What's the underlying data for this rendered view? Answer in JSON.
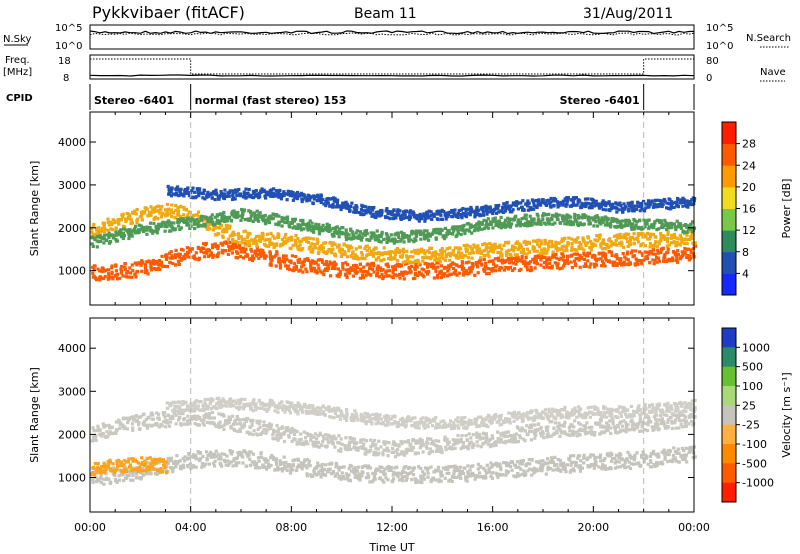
{
  "header": {
    "station": "Pykkvibaer (fitACF)",
    "beam": "Beam 11",
    "date": "31/Aug/2011"
  },
  "summary": {
    "nsky_label": "N.Sky",
    "nsearch_label": "N.Search",
    "freq_label": "Freq.",
    "freq_unit": "[MHz]",
    "nave_label": "Nave",
    "cpid_label": "CPID",
    "nsky_ticks": [
      "10^5",
      "10^0"
    ],
    "nsearch_ticks": [
      "10^5",
      "10^0"
    ],
    "freq_ticks": [
      "18",
      "8"
    ],
    "nave_ticks": [
      "80",
      "0"
    ],
    "cpid_segments": [
      {
        "label": "Stereo -6401",
        "start_hour": 0,
        "end_hour": 4
      },
      {
        "label": "normal (fast stereo) 153",
        "start_hour": 4,
        "end_hour": 22
      },
      {
        "label": "Stereo -6401",
        "start_hour": 22,
        "end_hour": 24
      }
    ]
  },
  "chart_data": [
    {
      "type": "heatmap",
      "name": "power",
      "ylabel": "Slant Range [km]",
      "yticks": [
        1000,
        2000,
        3000,
        4000
      ],
      "ylim": [
        200,
        4700
      ],
      "xlim": [
        0,
        24
      ],
      "colorbar": {
        "label": "Power [dB]",
        "ticks": [
          "4",
          "8",
          "12",
          "16",
          "20",
          "24",
          "28"
        ],
        "colors": [
          "#1428ff",
          "#2050b4",
          "#2e8b5a",
          "#78c84a",
          "#f2dc1e",
          "#ff9a00",
          "#ff5a00",
          "#ff1e00"
        ]
      }
    },
    {
      "type": "heatmap",
      "name": "velocity",
      "ylabel": "Slant Range [km]",
      "xlabel": "Time UT",
      "yticks": [
        1000,
        2000,
        3000,
        4000
      ],
      "ylim": [
        200,
        4700
      ],
      "xlim": [
        0,
        24
      ],
      "xticks": [
        "00:00",
        "04:00",
        "08:00",
        "12:00",
        "16:00",
        "20:00",
        "00:00"
      ],
      "colorbar": {
        "label": "Velocity [m s⁻¹]",
        "ticks": [
          "1000",
          "500",
          "100",
          "25",
          "-25",
          "-100",
          "-500",
          "-1000"
        ],
        "colors": [
          "#1e3cc8",
          "#2a8a6a",
          "#66c030",
          "#a8d878",
          "#c4c4bc",
          "#ffb040",
          "#ff8a00",
          "#ff5a00",
          "#ff1e00"
        ]
      }
    }
  ],
  "bands": {
    "power": [
      {
        "points": [
          [
            0,
            1000
          ],
          [
            0.7,
            1000
          ],
          [
            1.5,
            1050
          ],
          [
            2.3,
            1150
          ],
          [
            3,
            1300
          ],
          [
            4,
            1450
          ],
          [
            5,
            1550
          ],
          [
            6,
            1500
          ],
          [
            7,
            1350
          ],
          [
            8,
            1200
          ],
          [
            9,
            1120
          ],
          [
            10,
            1050
          ],
          [
            12,
            1020
          ],
          [
            14,
            1050
          ],
          [
            16,
            1150
          ],
          [
            18,
            1250
          ],
          [
            20,
            1300
          ],
          [
            22,
            1350
          ],
          [
            24,
            1450
          ]
        ],
        "width": 360,
        "color": "#ff5a00"
      },
      {
        "points": [
          [
            0,
            1950
          ],
          [
            1,
            2150
          ],
          [
            2,
            2350
          ],
          [
            3,
            2450
          ],
          [
            4,
            2300
          ],
          [
            5,
            2000
          ],
          [
            6,
            1800
          ],
          [
            7,
            1750
          ],
          [
            8,
            1700
          ],
          [
            9,
            1600
          ],
          [
            10,
            1500
          ],
          [
            11,
            1450
          ],
          [
            12,
            1400
          ],
          [
            13,
            1380
          ],
          [
            14,
            1420
          ],
          [
            15,
            1480
          ],
          [
            16,
            1520
          ],
          [
            18,
            1600
          ],
          [
            20,
            1700
          ],
          [
            22,
            1750
          ],
          [
            24,
            1800
          ]
        ],
        "width": 330,
        "color": "#f2a810"
      },
      {
        "points": [
          [
            0,
            1700
          ],
          [
            2,
            2000
          ],
          [
            4,
            2150
          ],
          [
            6,
            2350
          ],
          [
            8,
            2150
          ],
          [
            10,
            1900
          ],
          [
            12,
            1800
          ],
          [
            14,
            1900
          ],
          [
            16,
            2150
          ],
          [
            18,
            2250
          ],
          [
            20,
            2200
          ],
          [
            22,
            2100
          ],
          [
            24,
            2050
          ]
        ],
        "width": 260,
        "color": "#4f9a55"
      },
      {
        "points": [
          [
            3,
            2900
          ],
          [
            5,
            2800
          ],
          [
            7,
            2850
          ],
          [
            9,
            2700
          ],
          [
            11,
            2400
          ],
          [
            13,
            2300
          ],
          [
            15,
            2400
          ],
          [
            17,
            2550
          ],
          [
            19,
            2650
          ],
          [
            21,
            2500
          ],
          [
            24,
            2650
          ]
        ],
        "width": 230,
        "color": "#2050b4"
      }
    ],
    "velocity": [
      {
        "points": [
          [
            0,
            1050
          ],
          [
            1,
            1100
          ],
          [
            2,
            1200
          ],
          [
            3,
            1350
          ],
          [
            4,
            1450
          ],
          [
            6,
            1500
          ],
          [
            8,
            1300
          ],
          [
            10,
            1150
          ],
          [
            12,
            1100
          ],
          [
            14,
            1100
          ],
          [
            16,
            1200
          ],
          [
            18,
            1300
          ],
          [
            20,
            1400
          ],
          [
            22,
            1450
          ],
          [
            24,
            1600
          ]
        ],
        "width": 380,
        "color": "#c4c4bc"
      },
      {
        "points": [
          [
            0,
            2050
          ],
          [
            2,
            2350
          ],
          [
            4,
            2450
          ],
          [
            6,
            2250
          ],
          [
            8,
            2000
          ],
          [
            10,
            1800
          ],
          [
            12,
            1700
          ],
          [
            14,
            1800
          ],
          [
            16,
            1950
          ],
          [
            18,
            2150
          ],
          [
            20,
            2200
          ],
          [
            22,
            2300
          ],
          [
            24,
            2350
          ]
        ],
        "width": 360,
        "color": "#c9c9c1"
      },
      {
        "points": [
          [
            3,
            2650
          ],
          [
            5,
            2750
          ],
          [
            7,
            2700
          ],
          [
            9,
            2600
          ],
          [
            11,
            2400
          ],
          [
            13,
            2300
          ],
          [
            15,
            2300
          ],
          [
            17,
            2450
          ],
          [
            19,
            2550
          ],
          [
            21,
            2550
          ],
          [
            24,
            2700
          ]
        ],
        "width": 260,
        "color": "#cfcfc7"
      },
      {
        "points": [
          [
            0,
            1250
          ],
          [
            1,
            1300
          ],
          [
            2,
            1350
          ],
          [
            3,
            1300
          ]
        ],
        "width": 320,
        "color": "#ffa31a"
      }
    ]
  }
}
